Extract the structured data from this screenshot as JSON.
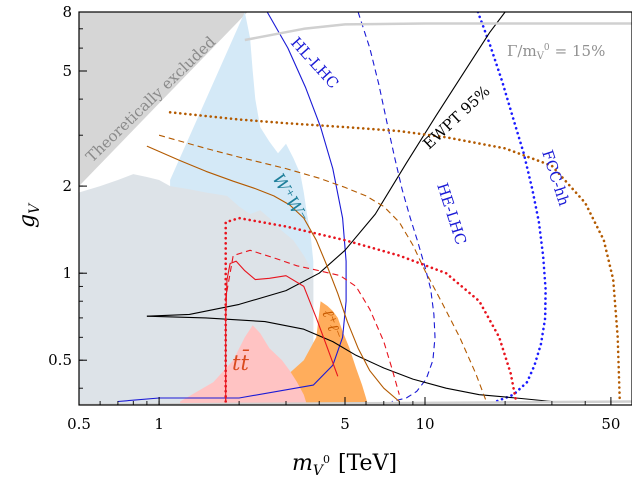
{
  "chart_data": {
    "type": "line",
    "xlabel": "m_{V^0} [TeV]",
    "ylabel": "g_V",
    "xscale": "log",
    "yscale": "log",
    "xlim": [
      0.5,
      60
    ],
    "ylim": [
      0.35,
      8
    ],
    "x_ticks": [
      0.5,
      1,
      5,
      10,
      50
    ],
    "x_tick_labels": [
      "0.5",
      "1",
      "5",
      "10",
      "50"
    ],
    "y_ticks": [
      0.5,
      1,
      2,
      5,
      8
    ],
    "y_tick_labels": [
      "0.5",
      "1",
      "2",
      "5",
      "8"
    ],
    "xlabel_parts": {
      "m": "m",
      "sub": "V",
      "sup": "0",
      "unit": "[TeV]"
    },
    "ylabel_parts": {
      "g": "g",
      "sub": "V"
    },
    "annotations": {
      "theory": "Theoretically excluded",
      "width": "Γ/m",
      "width_sub": "V",
      "width_sup": "0",
      "width_value": "= 15%",
      "hllhc": "HL-LHC",
      "helhc": "HE-LHC",
      "fcchh": "FCC-hh",
      "ewpt": "EWPT 95%",
      "ww": "W⁺W⁻",
      "ll": "ℓ⁺ℓ⁻",
      "tt": "tt̄"
    },
    "colors": {
      "theory_fill": "#d6d6d6",
      "lightblue_fill": "#d4e9f7",
      "grey_fill": "#dde3e8",
      "orange_fill": "#ffad5c",
      "pink_fill": "#ffc3c3",
      "orange_line": "#ff8c1a",
      "hl_blue": "#1a1ad6",
      "fcc_blue": "#1a1aff",
      "red": "#e8141e",
      "brown": "#b35a00",
      "ww_teal": "#1f7f9a",
      "tt_label": "#d94a1e",
      "width_grey": "#d0d0d0",
      "width_text": "#909090"
    },
    "series": [
      {
        "name": "HL-LHC",
        "style": "solid",
        "color": "#1a1ad6",
        "x": [
          2.55,
          3.05,
          3.55,
          4.05,
          4.5,
          4.9,
          5.05,
          5.05,
          4.9,
          4.5,
          3.8,
          2.0,
          1.0,
          0.7
        ],
        "y": [
          8.0,
          6.0,
          4.4,
          3.2,
          2.3,
          1.55,
          1.1,
          0.8,
          0.6,
          0.48,
          0.41,
          0.37,
          0.37,
          0.36
        ]
      },
      {
        "name": "HE-LHC",
        "style": "dashed",
        "color": "#1a1ad6",
        "x": [
          5.6,
          6.2,
          6.7,
          7.2,
          7.7,
          8.2,
          8.8,
          9.4,
          10.0,
          10.5,
          10.8,
          10.9,
          10.7,
          10.1,
          9.3,
          8.5,
          7.5
        ],
        "y": [
          8.0,
          6.0,
          4.5,
          3.3,
          2.5,
          1.95,
          1.55,
          1.28,
          1.05,
          0.88,
          0.72,
          0.6,
          0.5,
          0.43,
          0.39,
          0.37,
          0.36
        ]
      },
      {
        "name": "FCC-hh",
        "style": "dotted",
        "color": "#1a1aff",
        "x": [
          15.8,
          17.5,
          19.5,
          21.5,
          23.5,
          25.3,
          26.8,
          27.8,
          28.4,
          28.3,
          27.3,
          25.8,
          24.2,
          21.5,
          18.5
        ],
        "y": [
          8.0,
          6.2,
          4.6,
          3.4,
          2.6,
          1.95,
          1.5,
          1.15,
          0.88,
          0.7,
          0.57,
          0.48,
          0.42,
          0.38,
          0.36
        ]
      },
      {
        "name": "EWPT 95%",
        "style": "solid",
        "color": "#000000",
        "x": [
          0.9,
          1.3,
          2.0,
          3.0,
          4.0,
          5.0,
          6.5,
          8.5,
          11.0,
          14.5,
          17.5,
          20.0
        ],
        "y": [
          0.71,
          0.72,
          0.78,
          0.87,
          1.0,
          1.2,
          1.6,
          2.4,
          3.5,
          5.2,
          6.8,
          8.0
        ]
      },
      {
        "name": "",
        "style": "solid",
        "color": "#000000",
        "x": [
          0.9,
          1.5,
          2.5,
          3.5,
          4.5,
          5.5,
          7.0,
          9.0,
          12.0,
          16.0,
          22.0,
          30.0
        ],
        "y": [
          0.71,
          0.7,
          0.68,
          0.64,
          0.58,
          0.52,
          0.47,
          0.43,
          0.4,
          0.38,
          0.37,
          0.36
        ]
      },
      {
        "name": "",
        "style": "solid",
        "color": "#b35a00",
        "x": [
          0.9,
          1.2,
          1.5,
          1.9,
          2.3,
          2.7,
          3.1,
          3.5,
          3.9,
          4.3,
          4.7,
          5.1,
          5.6,
          6.2,
          7.0,
          8.0
        ],
        "y": [
          2.75,
          2.45,
          2.25,
          2.08,
          1.96,
          1.85,
          1.72,
          1.55,
          1.3,
          1.05,
          0.85,
          0.68,
          0.55,
          0.46,
          0.4,
          0.36
        ]
      },
      {
        "name": "",
        "style": "dashed",
        "color": "#b35a00",
        "x": [
          1.0,
          1.5,
          2.0,
          3.0,
          4.0,
          5.0,
          6.0,
          7.0,
          8.0,
          9.0,
          10.0,
          11.5,
          13.5,
          15.5,
          17.0
        ],
        "y": [
          3.0,
          2.7,
          2.52,
          2.3,
          2.13,
          1.98,
          1.85,
          1.7,
          1.5,
          1.25,
          1.02,
          0.8,
          0.6,
          0.45,
          0.36
        ]
      },
      {
        "name": "",
        "style": "dotted",
        "color": "#b35a00",
        "x": [
          1.1,
          2.0,
          3.0,
          5.0,
          8.0,
          12.0,
          20.0,
          30.0,
          40.0,
          47.0,
          51.0,
          53.0,
          54.0
        ],
        "y": [
          3.6,
          3.4,
          3.3,
          3.2,
          3.1,
          2.95,
          2.7,
          2.35,
          1.75,
          1.3,
          0.95,
          0.6,
          0.36
        ]
      },
      {
        "name": "",
        "style": "solid",
        "color": "#e8141e",
        "x": [
          1.78,
          1.78,
          1.8,
          1.85,
          1.95,
          2.1,
          2.3,
          2.6,
          3.0,
          3.5,
          3.9,
          4.3,
          4.7
        ],
        "y": [
          0.36,
          0.7,
          0.95,
          1.08,
          1.1,
          1.02,
          0.95,
          0.96,
          0.98,
          0.9,
          0.7,
          0.55,
          0.44
        ]
      },
      {
        "name": "",
        "style": "dashed",
        "color": "#e8141e",
        "x": [
          1.78,
          1.78,
          1.9,
          2.2,
          2.7,
          3.3,
          4.0,
          4.8,
          5.5,
          6.2,
          7.0,
          7.5,
          8.0
        ],
        "y": [
          0.36,
          0.82,
          1.15,
          1.2,
          1.13,
          1.06,
          1.02,
          0.98,
          0.9,
          0.75,
          0.58,
          0.47,
          0.38
        ]
      },
      {
        "name": "",
        "style": "dotted",
        "color": "#e8141e",
        "x": [
          1.78,
          1.78,
          2.0,
          3.0,
          5.0,
          8.0,
          12.0,
          16.0,
          19.0,
          21.0,
          22.0
        ],
        "y": [
          0.36,
          1.5,
          1.55,
          1.45,
          1.3,
          1.15,
          1.0,
          0.8,
          0.6,
          0.45,
          0.36
        ]
      },
      {
        "name": "",
        "style": "solid",
        "color": "#d0d0d0",
        "x": [
          2.1,
          3.5,
          5.0,
          10.0,
          20.0,
          60.0
        ],
        "y": [
          6.4,
          7.0,
          7.25,
          7.3,
          7.3,
          7.3
        ]
      },
      {
        "name": "",
        "style": "solid",
        "color": "#d0d0d0",
        "x": [
          0.5,
          2.0,
          10.0,
          60.0
        ],
        "y": [
          0.35,
          0.353,
          0.356,
          0.36
        ]
      }
    ],
    "regions": [
      {
        "name": "theory-excluded",
        "color": "#d6d6d6",
        "x": [
          0.5,
          2.15,
          0.5
        ],
        "y": [
          2.0,
          8.0,
          8.0
        ]
      },
      {
        "name": "lightblue-exclusion",
        "color": "#d4e9f7",
        "x": [
          1.1,
          2.1,
          2.2,
          2.25,
          2.3,
          2.4,
          2.6,
          2.8,
          3.0,
          3.2,
          3.4,
          3.5,
          3.6,
          3.7,
          3.8,
          3.8,
          1.1
        ],
        "y": [
          2.1,
          8.0,
          6.5,
          5.0,
          4.0,
          3.2,
          2.85,
          2.6,
          2.8,
          2.5,
          2.2,
          1.9,
          1.6,
          1.4,
          1.1,
          0.35,
          0.35
        ]
      },
      {
        "name": "grey-exclusion",
        "color": "#dde3e8",
        "x": [
          0.5,
          0.6,
          0.7,
          0.8,
          0.9,
          1.0,
          1.1,
          1.3,
          1.5,
          1.8,
          2.0,
          2.2,
          2.4,
          2.6,
          2.9,
          3.2,
          3.5,
          3.7,
          3.8,
          3.8,
          0.5
        ],
        "y": [
          1.9,
          2.0,
          2.1,
          2.2,
          2.15,
          2.1,
          2.0,
          1.95,
          1.9,
          1.85,
          1.7,
          1.6,
          1.65,
          1.55,
          1.4,
          1.3,
          1.15,
          1.05,
          1.0,
          0.35,
          0.35
        ]
      },
      {
        "name": "ll-exclusion",
        "color": "#ffad5c",
        "x": [
          2.6,
          3.0,
          3.5,
          3.9,
          4.05,
          4.3,
          4.5,
          4.7,
          4.9,
          5.2,
          5.5,
          5.8,
          6.0,
          6.1,
          2.6
        ],
        "y": [
          0.4,
          0.44,
          0.5,
          0.6,
          0.8,
          0.77,
          0.74,
          0.7,
          0.63,
          0.55,
          0.47,
          0.41,
          0.37,
          0.35,
          0.35
        ]
      },
      {
        "name": "tt-exclusion",
        "color": "#ffc3c3",
        "x": [
          1.2,
          1.6,
          1.9,
          2.1,
          2.25,
          2.4,
          2.6,
          2.9,
          3.1,
          3.3,
          3.5,
          3.6,
          1.2
        ],
        "y": [
          0.36,
          0.42,
          0.5,
          0.6,
          0.66,
          0.62,
          0.55,
          0.5,
          0.46,
          0.42,
          0.38,
          0.35,
          0.35
        ]
      }
    ]
  }
}
